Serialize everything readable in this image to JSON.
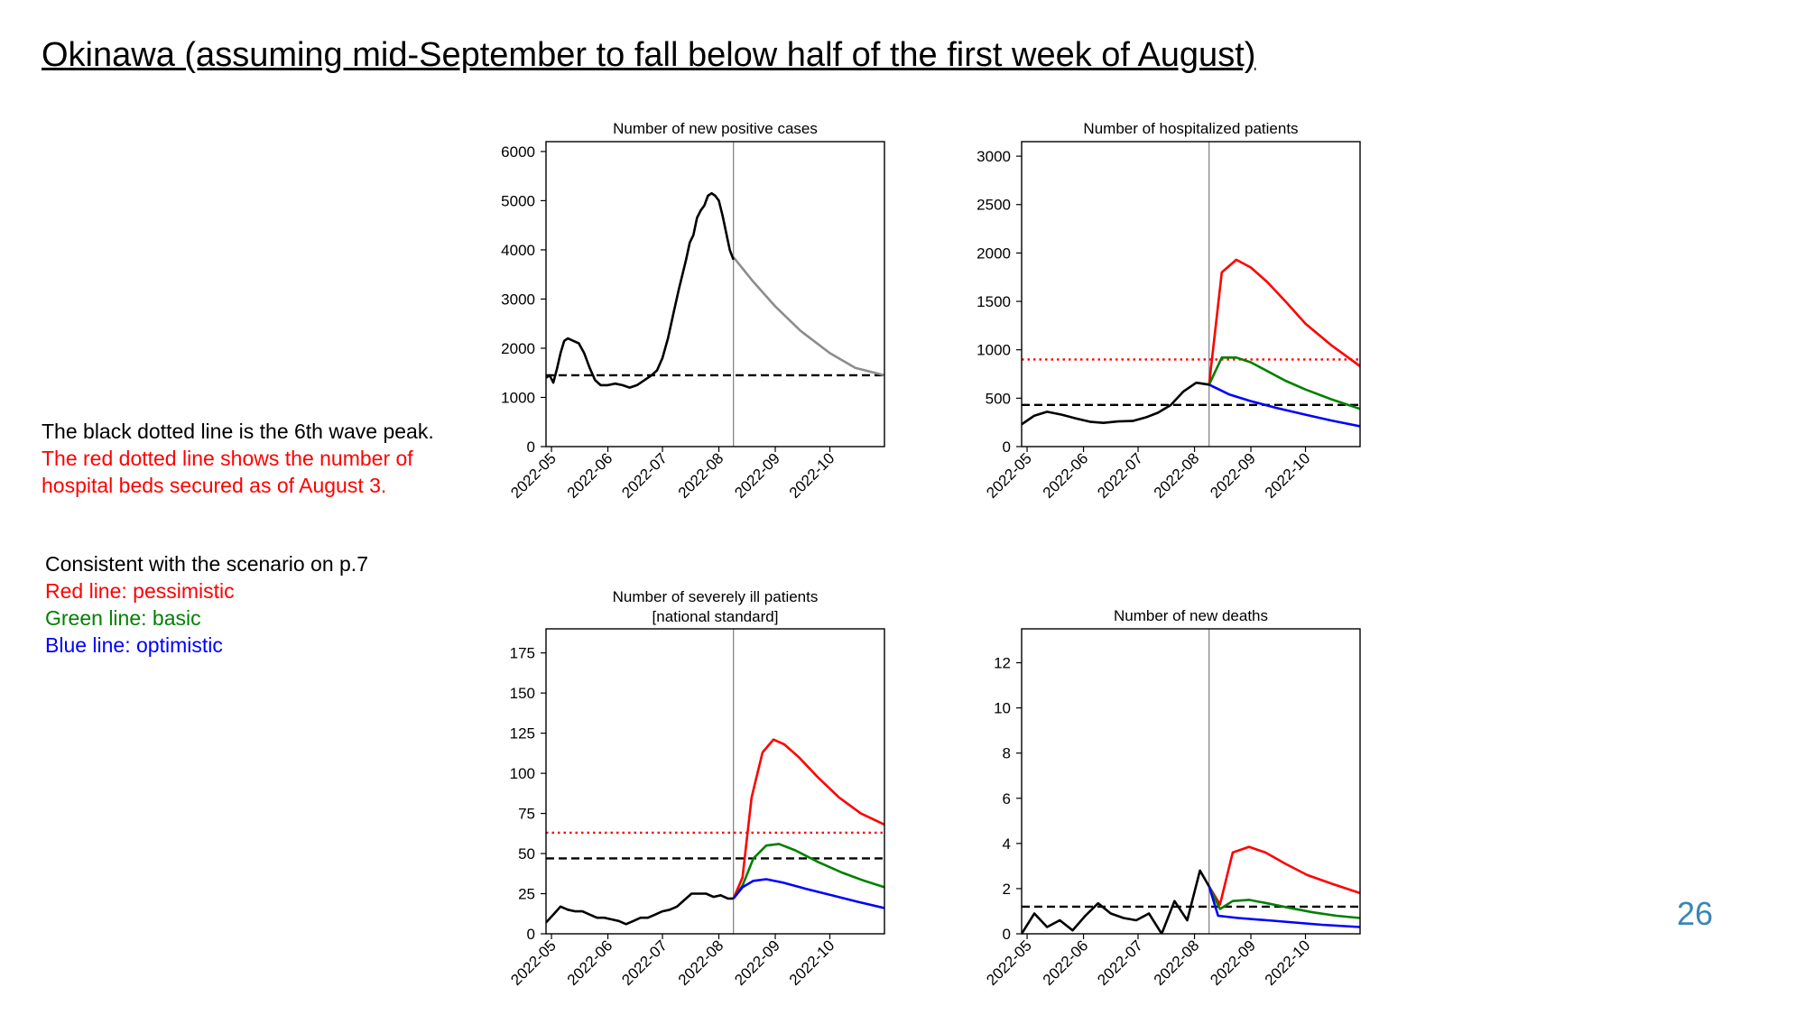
{
  "page": {
    "title": "Okinawa (assuming mid-September to fall below half of the first week of August)",
    "notes": {
      "black_line": "The black dotted line is the 6th wave peak.",
      "red_line_1": "The red dotted line shows the number of",
      "red_line_2": "hospital beds secured as of August 3."
    },
    "scenario": {
      "heading": "Consistent with the scenario on p.7",
      "red": "Red line: pessimistic",
      "green": "Green line: basic",
      "blue": "Blue line: optimistic"
    },
    "page_number": "26",
    "colors": {
      "red": "#ff0000",
      "green": "#008000",
      "blue": "#0000ff",
      "black": "#000000",
      "projection_gray": "#8c8c8c",
      "page_number": "#3a86b5"
    }
  },
  "chart_data": [
    {
      "type": "line",
      "title": "Number of new positive cases",
      "x_ticks": [
        "2022-05",
        "2022-06",
        "2022-07",
        "2022-08",
        "2022-09",
        "2022-10"
      ],
      "xlim": [
        "2022-04-28",
        "2022-10-31"
      ],
      "ylim": [
        0,
        6200
      ],
      "y_ticks": [
        0,
        1000,
        2000,
        3000,
        4000,
        5000,
        6000
      ],
      "vline_date": "2022-08-09",
      "reference_lines": [
        {
          "kind": "6th wave peak",
          "value": 1450,
          "color": "#000000",
          "style": "dashed"
        }
      ],
      "series": [
        {
          "role": "observed",
          "color": "#000000",
          "points": [
            [
              "2022-04-28",
              1400
            ],
            [
              "2022-04-30",
              1450
            ],
            [
              "2022-05-02",
              1300
            ],
            [
              "2022-05-04",
              1580
            ],
            [
              "2022-05-06",
              1900
            ],
            [
              "2022-05-08",
              2150
            ],
            [
              "2022-05-10",
              2200
            ],
            [
              "2022-05-13",
              2150
            ],
            [
              "2022-05-16",
              2100
            ],
            [
              "2022-05-19",
              1900
            ],
            [
              "2022-05-22",
              1600
            ],
            [
              "2022-05-25",
              1350
            ],
            [
              "2022-05-28",
              1250
            ],
            [
              "2022-06-01",
              1250
            ],
            [
              "2022-06-05",
              1280
            ],
            [
              "2022-06-09",
              1250
            ],
            [
              "2022-06-13",
              1200
            ],
            [
              "2022-06-17",
              1250
            ],
            [
              "2022-06-21",
              1350
            ],
            [
              "2022-06-25",
              1450
            ],
            [
              "2022-06-28",
              1550
            ],
            [
              "2022-07-01",
              1800
            ],
            [
              "2022-07-04",
              2200
            ],
            [
              "2022-07-07",
              2700
            ],
            [
              "2022-07-10",
              3200
            ],
            [
              "2022-07-12",
              3500
            ],
            [
              "2022-07-14",
              3800
            ],
            [
              "2022-07-16",
              4150
            ],
            [
              "2022-07-18",
              4300
            ],
            [
              "2022-07-20",
              4650
            ],
            [
              "2022-07-22",
              4800
            ],
            [
              "2022-07-24",
              4900
            ],
            [
              "2022-07-26",
              5100
            ],
            [
              "2022-07-28",
              5150
            ],
            [
              "2022-07-30",
              5100
            ],
            [
              "2022-08-01",
              5000
            ],
            [
              "2022-08-03",
              4700
            ],
            [
              "2022-08-05",
              4350
            ],
            [
              "2022-08-07",
              4000
            ],
            [
              "2022-08-09",
              3800
            ]
          ]
        },
        {
          "role": "projection",
          "color": "#8c8c8c",
          "points": [
            [
              "2022-08-09",
              3850
            ],
            [
              "2022-08-20",
              3350
            ],
            [
              "2022-09-01",
              2850
            ],
            [
              "2022-09-15",
              2350
            ],
            [
              "2022-10-01",
              1900
            ],
            [
              "2022-10-15",
              1600
            ],
            [
              "2022-10-31",
              1450
            ]
          ]
        }
      ]
    },
    {
      "type": "line",
      "title": "Number of hospitalized patients",
      "x_ticks": [
        "2022-05",
        "2022-06",
        "2022-07",
        "2022-08",
        "2022-09",
        "2022-10"
      ],
      "xlim": [
        "2022-04-28",
        "2022-10-31"
      ],
      "ylim": [
        0,
        3150
      ],
      "y_ticks": [
        0,
        500,
        1000,
        1500,
        2000,
        2500,
        3000
      ],
      "vline_date": "2022-08-09",
      "reference_lines": [
        {
          "kind": "hospital beds secured as of August 3",
          "value": 900,
          "color": "#ff0000",
          "style": "dotted"
        },
        {
          "kind": "6th wave peak",
          "value": 430,
          "color": "#000000",
          "style": "dashed"
        }
      ],
      "series": [
        {
          "role": "observed",
          "color": "#000000",
          "points": [
            [
              "2022-04-28",
              230
            ],
            [
              "2022-05-05",
              320
            ],
            [
              "2022-05-12",
              360
            ],
            [
              "2022-05-20",
              330
            ],
            [
              "2022-05-28",
              290
            ],
            [
              "2022-06-05",
              255
            ],
            [
              "2022-06-12",
              245
            ],
            [
              "2022-06-20",
              260
            ],
            [
              "2022-06-28",
              265
            ],
            [
              "2022-07-05",
              300
            ],
            [
              "2022-07-12",
              350
            ],
            [
              "2022-07-19",
              430
            ],
            [
              "2022-07-26",
              570
            ],
            [
              "2022-08-02",
              660
            ],
            [
              "2022-08-09",
              640
            ]
          ]
        },
        {
          "role": "pessimistic",
          "color": "#ff0000",
          "points": [
            [
              "2022-08-09",
              640
            ],
            [
              "2022-08-16",
              1800
            ],
            [
              "2022-08-24",
              1930
            ],
            [
              "2022-09-01",
              1850
            ],
            [
              "2022-09-10",
              1700
            ],
            [
              "2022-09-20",
              1500
            ],
            [
              "2022-10-01",
              1270
            ],
            [
              "2022-10-15",
              1050
            ],
            [
              "2022-10-31",
              830
            ]
          ]
        },
        {
          "role": "basic",
          "color": "#008000",
          "points": [
            [
              "2022-08-09",
              640
            ],
            [
              "2022-08-16",
              920
            ],
            [
              "2022-08-24",
              920
            ],
            [
              "2022-09-01",
              870
            ],
            [
              "2022-09-10",
              780
            ],
            [
              "2022-09-20",
              680
            ],
            [
              "2022-10-01",
              590
            ],
            [
              "2022-10-15",
              490
            ],
            [
              "2022-10-31",
              390
            ]
          ]
        },
        {
          "role": "optimistic",
          "color": "#0000ff",
          "points": [
            [
              "2022-08-09",
              640
            ],
            [
              "2022-08-20",
              540
            ],
            [
              "2022-09-01",
              470
            ],
            [
              "2022-09-15",
              400
            ],
            [
              "2022-10-01",
              330
            ],
            [
              "2022-10-15",
              270
            ],
            [
              "2022-10-31",
              210
            ]
          ]
        }
      ]
    },
    {
      "type": "line",
      "title": "Number of severely ill patients",
      "subtitle": "[national standard]",
      "x_ticks": [
        "2022-05",
        "2022-06",
        "2022-07",
        "2022-08",
        "2022-09",
        "2022-10"
      ],
      "xlim": [
        "2022-04-28",
        "2022-10-31"
      ],
      "ylim": [
        0,
        190
      ],
      "y_ticks": [
        0,
        25,
        50,
        75,
        100,
        125,
        150,
        175
      ],
      "vline_date": "2022-08-09",
      "reference_lines": [
        {
          "kind": "hospital beds secured as of August 3",
          "value": 63,
          "color": "#ff0000",
          "style": "dotted"
        },
        {
          "kind": "6th wave peak",
          "value": 47,
          "color": "#000000",
          "style": "dashed"
        }
      ],
      "series": [
        {
          "role": "observed",
          "color": "#000000",
          "points": [
            [
              "2022-04-28",
              7
            ],
            [
              "2022-05-02",
              12
            ],
            [
              "2022-05-06",
              17
            ],
            [
              "2022-05-10",
              15
            ],
            [
              "2022-05-14",
              14
            ],
            [
              "2022-05-18",
              14
            ],
            [
              "2022-05-22",
              12
            ],
            [
              "2022-05-26",
              10
            ],
            [
              "2022-05-30",
              10
            ],
            [
              "2022-06-03",
              9
            ],
            [
              "2022-06-07",
              8
            ],
            [
              "2022-06-11",
              6
            ],
            [
              "2022-06-15",
              8
            ],
            [
              "2022-06-19",
              10
            ],
            [
              "2022-06-23",
              10
            ],
            [
              "2022-06-27",
              12
            ],
            [
              "2022-07-01",
              14
            ],
            [
              "2022-07-05",
              15
            ],
            [
              "2022-07-09",
              17
            ],
            [
              "2022-07-13",
              21
            ],
            [
              "2022-07-17",
              25
            ],
            [
              "2022-07-21",
              25
            ],
            [
              "2022-07-25",
              25
            ],
            [
              "2022-07-29",
              23
            ],
            [
              "2022-08-02",
              24
            ],
            [
              "2022-08-06",
              22
            ],
            [
              "2022-08-09",
              22
            ]
          ]
        },
        {
          "role": "pessimistic",
          "color": "#ff0000",
          "points": [
            [
              "2022-08-09",
              22
            ],
            [
              "2022-08-14",
              35
            ],
            [
              "2022-08-19",
              85
            ],
            [
              "2022-08-25",
              113
            ],
            [
              "2022-08-31",
              121
            ],
            [
              "2022-09-06",
              118
            ],
            [
              "2022-09-14",
              110
            ],
            [
              "2022-09-24",
              98
            ],
            [
              "2022-10-06",
              85
            ],
            [
              "2022-10-18",
              75
            ],
            [
              "2022-10-31",
              68
            ]
          ]
        },
        {
          "role": "basic",
          "color": "#008000",
          "points": [
            [
              "2022-08-09",
              22
            ],
            [
              "2022-08-14",
              30
            ],
            [
              "2022-08-20",
              47
            ],
            [
              "2022-08-27",
              55
            ],
            [
              "2022-09-03",
              56
            ],
            [
              "2022-09-12",
              52
            ],
            [
              "2022-09-24",
              45
            ],
            [
              "2022-10-08",
              38
            ],
            [
              "2022-10-20",
              33
            ],
            [
              "2022-10-31",
              29
            ]
          ]
        },
        {
          "role": "optimistic",
          "color": "#0000ff",
          "points": [
            [
              "2022-08-09",
              22
            ],
            [
              "2022-08-14",
              29
            ],
            [
              "2022-08-20",
              33
            ],
            [
              "2022-08-27",
              34
            ],
            [
              "2022-09-05",
              32
            ],
            [
              "2022-09-18",
              28
            ],
            [
              "2022-10-02",
              24
            ],
            [
              "2022-10-16",
              20
            ],
            [
              "2022-10-31",
              16
            ]
          ]
        }
      ]
    },
    {
      "type": "line",
      "title": "Number of new deaths",
      "x_ticks": [
        "2022-05",
        "2022-06",
        "2022-07",
        "2022-08",
        "2022-09",
        "2022-10"
      ],
      "xlim": [
        "2022-04-28",
        "2022-10-31"
      ],
      "ylim": [
        0,
        13.5
      ],
      "y_ticks": [
        0,
        2,
        4,
        6,
        8,
        10,
        12
      ],
      "vline_date": "2022-08-09",
      "reference_lines": [
        {
          "kind": "6th wave peak",
          "value": 1.2,
          "color": "#000000",
          "style": "dashed"
        }
      ],
      "series": [
        {
          "role": "observed",
          "color": "#000000",
          "points": [
            [
              "2022-04-28",
              0
            ],
            [
              "2022-05-05",
              0.9
            ],
            [
              "2022-05-12",
              0.3
            ],
            [
              "2022-05-19",
              0.6
            ],
            [
              "2022-05-26",
              0.15
            ],
            [
              "2022-06-02",
              0.8
            ],
            [
              "2022-06-09",
              1.35
            ],
            [
              "2022-06-16",
              0.9
            ],
            [
              "2022-06-23",
              0.7
            ],
            [
              "2022-06-30",
              0.6
            ],
            [
              "2022-07-07",
              0.9
            ],
            [
              "2022-07-14",
              0
            ],
            [
              "2022-07-21",
              1.45
            ],
            [
              "2022-07-28",
              0.6
            ],
            [
              "2022-08-04",
              2.8
            ],
            [
              "2022-08-09",
              2.1
            ]
          ]
        },
        {
          "role": "pessimistic",
          "color": "#ff0000",
          "points": [
            [
              "2022-08-09",
              2.1
            ],
            [
              "2022-08-15",
              1.3
            ],
            [
              "2022-08-22",
              3.6
            ],
            [
              "2022-08-31",
              3.85
            ],
            [
              "2022-09-09",
              3.6
            ],
            [
              "2022-09-20",
              3.1
            ],
            [
              "2022-10-02",
              2.6
            ],
            [
              "2022-10-16",
              2.2
            ],
            [
              "2022-10-31",
              1.8
            ]
          ]
        },
        {
          "role": "basic",
          "color": "#008000",
          "points": [
            [
              "2022-08-09",
              2.1
            ],
            [
              "2022-08-15",
              1.1
            ],
            [
              "2022-08-22",
              1.45
            ],
            [
              "2022-08-31",
              1.5
            ],
            [
              "2022-09-10",
              1.35
            ],
            [
              "2022-09-22",
              1.15
            ],
            [
              "2022-10-05",
              0.95
            ],
            [
              "2022-10-18",
              0.8
            ],
            [
              "2022-10-31",
              0.7
            ]
          ]
        },
        {
          "role": "optimistic",
          "color": "#0000ff",
          "points": [
            [
              "2022-08-09",
              2.1
            ],
            [
              "2022-08-14",
              0.8
            ],
            [
              "2022-08-25",
              0.7
            ],
            [
              "2022-09-10",
              0.6
            ],
            [
              "2022-09-25",
              0.5
            ],
            [
              "2022-10-10",
              0.4
            ],
            [
              "2022-10-31",
              0.3
            ]
          ]
        }
      ]
    }
  ]
}
